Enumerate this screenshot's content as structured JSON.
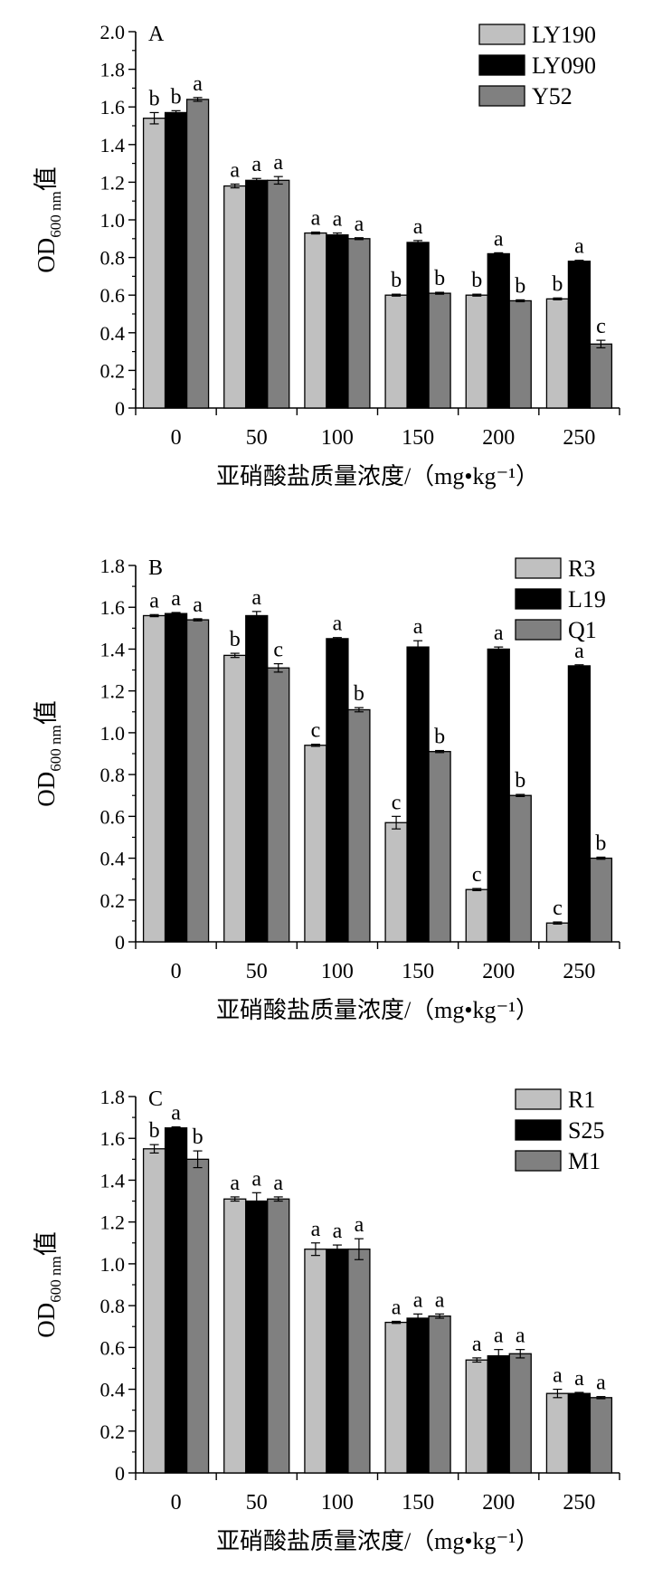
{
  "chart_data": [
    {
      "type": "bar",
      "panel": "A",
      "categories": [
        "0",
        "50",
        "100",
        "150",
        "200",
        "250"
      ],
      "xlabel": "亚硝酸盐质量浓度/（mg•kg⁻¹）",
      "ylabel_main": "OD",
      "ylabel_sub": "600 nm",
      "ylabel_suffix": "值",
      "ylim": [
        0,
        2.0
      ],
      "yticks": [
        "0",
        "0.2",
        "0.4",
        "0.6",
        "0.8",
        "1.0",
        "1.2",
        "1.4",
        "1.6",
        "1.8",
        "2.0"
      ],
      "legend_position": "top-right",
      "series": [
        {
          "name": "LY190",
          "color": "#c0c0c0",
          "values": [
            1.54,
            1.18,
            0.93,
            0.6,
            0.6,
            0.58
          ],
          "errors": [
            0.03,
            0.01,
            0.005,
            0.005,
            0.005,
            0.005
          ],
          "letters": [
            "b",
            "a",
            "a",
            "b",
            "b",
            "b"
          ]
        },
        {
          "name": "LY090",
          "color": "#000000",
          "values": [
            1.57,
            1.21,
            0.92,
            0.88,
            0.82,
            0.78
          ],
          "errors": [
            0.01,
            0.01,
            0.01,
            0.01,
            0.005,
            0.005
          ],
          "letters": [
            "b",
            "a",
            "a",
            "a",
            "a",
            "a"
          ]
        },
        {
          "name": "Y52",
          "color": "#808080",
          "values": [
            1.64,
            1.21,
            0.9,
            0.61,
            0.57,
            0.34
          ],
          "errors": [
            0.01,
            0.02,
            0.005,
            0.005,
            0.005,
            0.02
          ],
          "letters": [
            "a",
            "a",
            "a",
            "b",
            "b",
            "c"
          ]
        }
      ]
    },
    {
      "type": "bar",
      "panel": "B",
      "categories": [
        "0",
        "50",
        "100",
        "150",
        "200",
        "250"
      ],
      "xlabel": "亚硝酸盐质量浓度/（mg•kg⁻¹）",
      "ylabel_main": "OD",
      "ylabel_sub": "600 nm",
      "ylabel_suffix": "值",
      "ylim": [
        0,
        1.8
      ],
      "yticks": [
        "0",
        "0.2",
        "0.4",
        "0.6",
        "0.8",
        "1.0",
        "1.2",
        "1.4",
        "1.6",
        "1.8"
      ],
      "legend_position": "top-right",
      "series": [
        {
          "name": "R3",
          "color": "#c0c0c0",
          "values": [
            1.56,
            1.37,
            0.94,
            0.57,
            0.25,
            0.09
          ],
          "errors": [
            0.005,
            0.01,
            0.005,
            0.03,
            0.005,
            0.005
          ],
          "letters": [
            "a",
            "b",
            "c",
            "c",
            "c",
            "c"
          ]
        },
        {
          "name": "L19",
          "color": "#000000",
          "values": [
            1.57,
            1.56,
            1.45,
            1.41,
            1.4,
            1.32
          ],
          "errors": [
            0.005,
            0.02,
            0.005,
            0.03,
            0.01,
            0.005
          ],
          "letters": [
            "a",
            "a",
            "a",
            "a",
            "a",
            "a"
          ]
        },
        {
          "name": "Q1",
          "color": "#808080",
          "values": [
            1.54,
            1.31,
            1.11,
            0.91,
            0.7,
            0.4
          ],
          "errors": [
            0.005,
            0.02,
            0.01,
            0.005,
            0.005,
            0.005
          ],
          "letters": [
            "a",
            "c",
            "b",
            "b",
            "b",
            "b"
          ]
        }
      ]
    },
    {
      "type": "bar",
      "panel": "C",
      "categories": [
        "0",
        "50",
        "100",
        "150",
        "200",
        "250"
      ],
      "xlabel": "亚硝酸盐质量浓度/（mg•kg⁻¹）",
      "ylabel_main": "OD",
      "ylabel_sub": "600 nm",
      "ylabel_suffix": "值",
      "ylim": [
        0,
        1.8
      ],
      "yticks": [
        "0",
        "0.2",
        "0.4",
        "0.6",
        "0.8",
        "1.0",
        "1.2",
        "1.4",
        "1.6",
        "1.8"
      ],
      "legend_position": "top-right",
      "series": [
        {
          "name": "R1",
          "color": "#c0c0c0",
          "values": [
            1.55,
            1.31,
            1.07,
            0.72,
            0.54,
            0.38
          ],
          "errors": [
            0.02,
            0.01,
            0.03,
            0.005,
            0.01,
            0.02
          ],
          "letters": [
            "b",
            "a",
            "a",
            "a",
            "a",
            "a"
          ]
        },
        {
          "name": "S25",
          "color": "#000000",
          "values": [
            1.65,
            1.3,
            1.07,
            0.74,
            0.56,
            0.38
          ],
          "errors": [
            0.005,
            0.04,
            0.02,
            0.02,
            0.03,
            0.005
          ],
          "letters": [
            "a",
            "a",
            "a",
            "a",
            "a",
            "a"
          ]
        },
        {
          "name": "M1",
          "color": "#808080",
          "values": [
            1.5,
            1.31,
            1.07,
            0.75,
            0.57,
            0.36
          ],
          "errors": [
            0.04,
            0.01,
            0.05,
            0.01,
            0.02,
            0.005
          ],
          "letters": [
            "b",
            "a",
            "a",
            "a",
            "a",
            "a"
          ]
        }
      ]
    }
  ]
}
